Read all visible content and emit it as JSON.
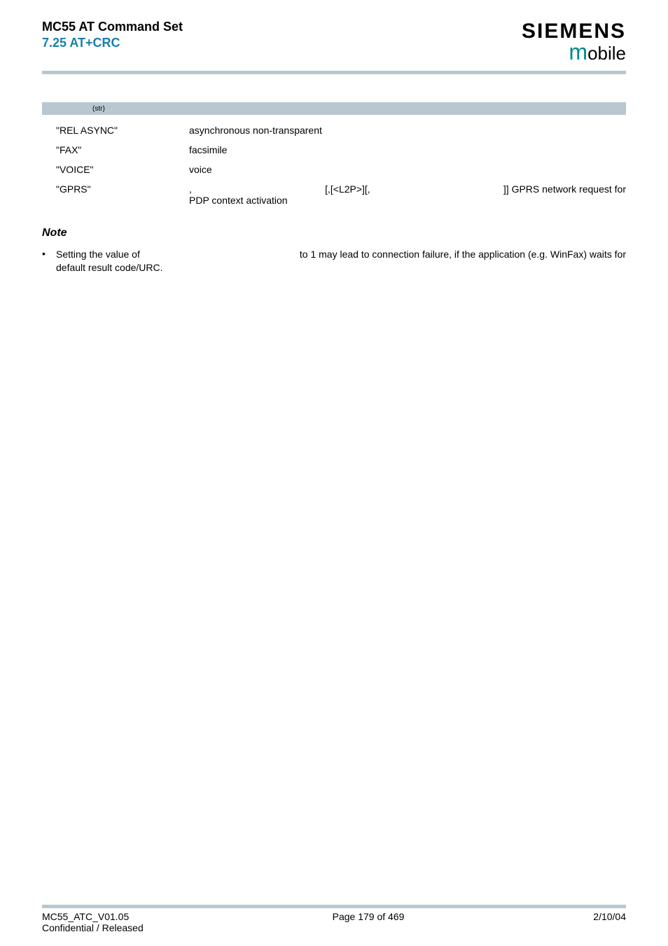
{
  "header": {
    "title": "MC55 AT Command Set",
    "subtitle": "7.25 AT+CRC",
    "brand": "SIEMENS",
    "brand_sub_m": "m",
    "brand_sub_rest": "obile"
  },
  "colors": {
    "accent": "#1a7fad",
    "bar_bg": "#b8c7d0",
    "mobile_m": "#008b8b",
    "text": "#000000",
    "bg": "#ffffff"
  },
  "param": {
    "super": "(str)"
  },
  "defs": [
    {
      "label": "\"REL ASYNC\"",
      "value": "asynchronous non-transparent"
    },
    {
      "label": "\"FAX\"",
      "value": "facsimile"
    },
    {
      "label": "\"VOICE\"",
      "value": "voice"
    }
  ],
  "gprs": {
    "label": "\"GPRS\"",
    "seg1": ",",
    "seg2": "[,[<L2P>][,",
    "seg3": "]] GPRS network request for",
    "line2": "PDP context activation"
  },
  "note": {
    "heading": "Note",
    "bullet": "•",
    "line1a": "Setting the value of ",
    "line1b": " to 1 may lead to connection failure, if the application (e.g. WinFax) waits for",
    "line2": "default result code/URC."
  },
  "footer": {
    "left_line1": "MC55_ATC_V01.05",
    "left_line2": "Confidential / Released",
    "center": "Page 179 of 469",
    "right": "2/10/04"
  }
}
